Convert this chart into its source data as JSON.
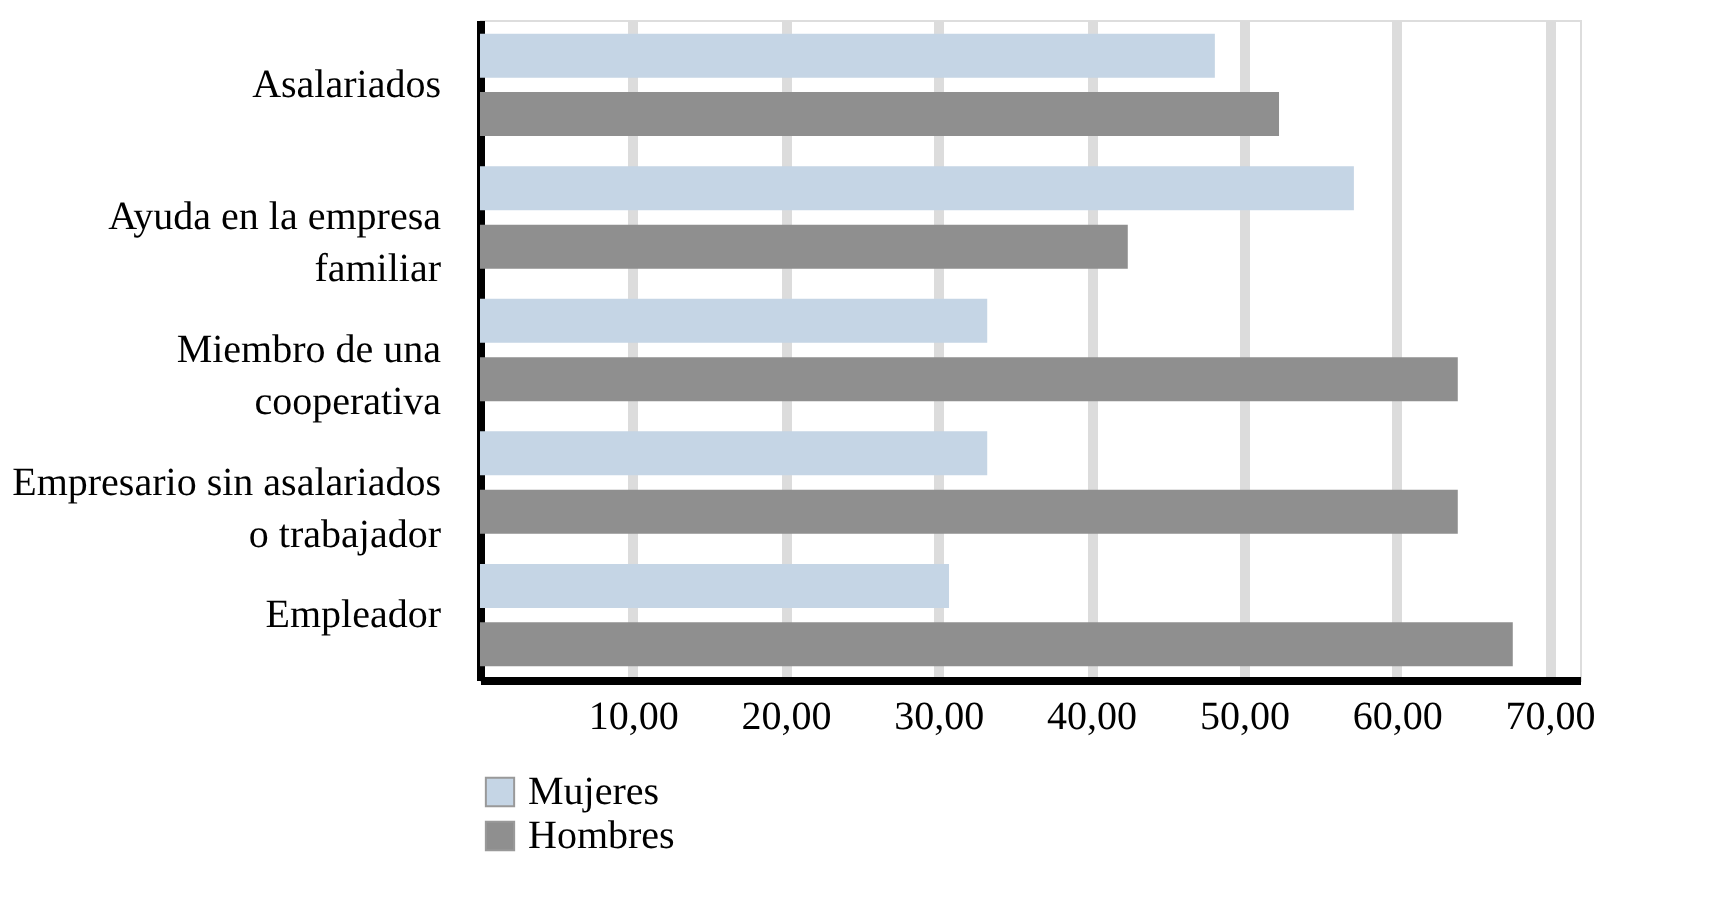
{
  "chart_data": {
    "type": "bar",
    "orientation": "horizontal",
    "categories": [
      "Asalariados",
      "Ayuda en la empresa\nfamiliar",
      "Miembro de una\ncooperativa",
      "Empresario sin asalariados\no trabajador",
      "Empleador"
    ],
    "series": [
      {
        "name": "Mujeres",
        "color": "#c5d5e5",
        "values": [
          48.1,
          57.2,
          33.2,
          33.2,
          30.7
        ]
      },
      {
        "name": "Hombres",
        "color": "#8f8f8f",
        "values": [
          52.3,
          42.4,
          64.0,
          64.0,
          67.6
        ]
      }
    ],
    "xlim": [
      0,
      72
    ],
    "xticks": [
      {
        "value": 10,
        "label": "10,00"
      },
      {
        "value": 20,
        "label": "20,00"
      },
      {
        "value": 30,
        "label": "30,00"
      },
      {
        "value": 40,
        "label": "40,00"
      },
      {
        "value": 50,
        "label": "50,00"
      },
      {
        "value": 60,
        "label": "60,00"
      },
      {
        "value": 70,
        "label": "70,00"
      }
    ],
    "grid": "x",
    "legend": "bottom"
  }
}
